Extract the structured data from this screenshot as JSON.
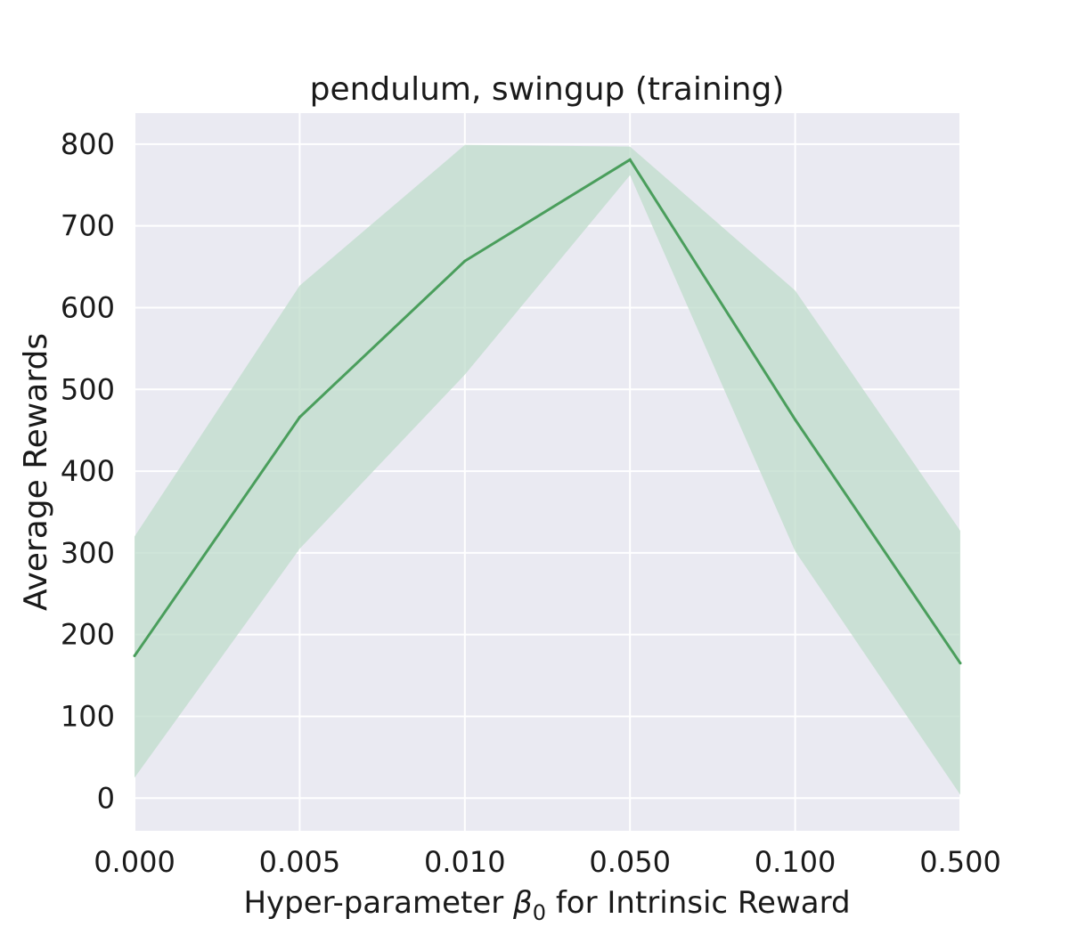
{
  "chart_data": {
    "type": "line",
    "title": "pendulum, swingup (training)",
    "xlabel_prefix": "Hyper-parameter ",
    "xlabel_symbol": "β",
    "xlabel_subscript": "0",
    "xlabel_suffix": " for Intrinsic Reward",
    "ylabel": "Average Rewards",
    "categories": [
      "0.000",
      "0.005",
      "0.010",
      "0.050",
      "0.100",
      "0.500"
    ],
    "series": [
      {
        "values": [
          174,
          466,
          657,
          781,
          463,
          165
        ],
        "lower": [
          25,
          305,
          518,
          762,
          302,
          4
        ],
        "upper": [
          320,
          627,
          799,
          797,
          621,
          327
        ]
      }
    ],
    "ylim": [
      -40,
      838
    ],
    "yticks": [
      0,
      100,
      200,
      300,
      400,
      500,
      600,
      700,
      800
    ],
    "grid": true,
    "colors": {
      "line": "#4a9e5c",
      "band": "#bfdccb",
      "background": "#eaeaf2",
      "grid": "#ffffff"
    }
  }
}
